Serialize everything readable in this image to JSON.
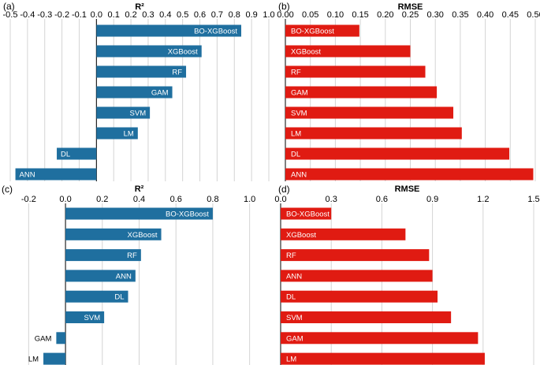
{
  "colors": {
    "blue": "#1f6f9f",
    "red": "#e01b12",
    "grid": "#d4d4d4"
  },
  "chart_data": [
    {
      "panel": "(a)",
      "type": "bar",
      "orientation": "horizontal",
      "title": "R²",
      "xlim": [
        -0.5,
        1.0
      ],
      "ticks": [
        -0.5,
        -0.4,
        -0.3,
        -0.2,
        -0.1,
        0.0,
        0.1,
        0.2,
        0.3,
        0.4,
        0.5,
        0.6,
        0.7,
        0.8,
        0.9,
        1.0
      ],
      "tick_labels": [
        "-0.5",
        "-0.4",
        "-0.3",
        "-0.2",
        "-0.1",
        "0.0",
        "0.1",
        "0.2",
        "0.3",
        "0.4",
        "0.5",
        "0.6",
        "0.7",
        "0.8",
        "0.9",
        "1.0"
      ],
      "color": "#1f6f9f",
      "categories": [
        "BO-XGBoost",
        "XGBoost",
        "RF",
        "GAM",
        "SVM",
        "LM",
        "DL",
        "ANN"
      ],
      "values": [
        0.84,
        0.61,
        0.52,
        0.44,
        0.31,
        0.24,
        -0.23,
        -0.47
      ]
    },
    {
      "panel": "(b)",
      "type": "bar",
      "orientation": "horizontal",
      "title": "RMSE",
      "xlim": [
        0.0,
        0.5
      ],
      "ticks": [
        0.0,
        0.05,
        0.1,
        0.15,
        0.2,
        0.25,
        0.3,
        0.35,
        0.4,
        0.45,
        0.5
      ],
      "tick_labels": [
        "0.00",
        "0.05",
        "0.10",
        "0.15",
        "0.20",
        "0.25",
        "0.30",
        "0.35",
        "0.40",
        "0.45",
        "0.50"
      ],
      "color": "#e01b12",
      "categories": [
        "BO-XGBoost",
        "XGBoost",
        "RF",
        "GAM",
        "SVM",
        "LM",
        "DL",
        "ANN"
      ],
      "values": [
        0.148,
        0.25,
        0.28,
        0.303,
        0.336,
        0.353,
        0.448,
        0.496
      ]
    },
    {
      "panel": "(c)",
      "type": "bar",
      "orientation": "horizontal",
      "title": "R²",
      "xlim": [
        -0.3,
        1.1
      ],
      "ticks": [
        -0.2,
        0.0,
        0.2,
        0.4,
        0.6,
        0.8,
        1.0
      ],
      "tick_labels": [
        "-0.2",
        "0.0",
        "0.2",
        "0.4",
        "0.6",
        "0.8",
        "1.0"
      ],
      "color": "#1f6f9f",
      "categories": [
        "BO-XGBoost",
        "XGBoost",
        "RF",
        "ANN",
        "DL",
        "SVM",
        "GAM",
        "LM"
      ],
      "values": [
        0.8,
        0.52,
        0.41,
        0.38,
        0.34,
        0.21,
        -0.05,
        -0.12
      ]
    },
    {
      "panel": "(d)",
      "type": "bar",
      "orientation": "horizontal",
      "title": "RMSE",
      "xlim": [
        0.0,
        1.5
      ],
      "ticks": [
        0.0,
        0.3,
        0.6,
        0.9,
        1.2,
        1.5
      ],
      "tick_labels": [
        "0.0",
        "0.3",
        "0.6",
        "0.9",
        "1.2",
        "1.5"
      ],
      "color": "#e01b12",
      "categories": [
        "BO-XGBoost",
        "XGBoost",
        "RF",
        "ANN",
        "DL",
        "SVM",
        "GAM",
        "LM"
      ],
      "values": [
        0.3,
        0.74,
        0.88,
        0.9,
        0.93,
        1.01,
        1.17,
        1.21
      ]
    }
  ]
}
